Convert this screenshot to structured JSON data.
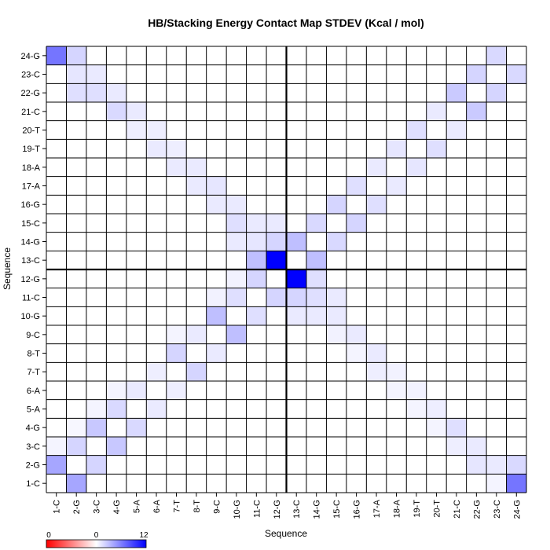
{
  "chart_data": {
    "type": "heatmap",
    "title": "HB/Stacking Energy Contact Map STDEV (Kcal / mol)",
    "xlabel": "Sequence",
    "ylabel": "Sequence",
    "labels": [
      "1-C",
      "2-G",
      "3-C",
      "4-G",
      "5-A",
      "6-A",
      "7-T",
      "8-T",
      "9-C",
      "10-G",
      "11-C",
      "12-G",
      "13-C",
      "14-G",
      "15-C",
      "16-G",
      "17-A",
      "18-A",
      "19-T",
      "20-T",
      "21-C",
      "22-G",
      "23-C",
      "24-G"
    ],
    "colorbar": {
      "min": 0,
      "mid": 0,
      "max": 12,
      "tick_labels": [
        "0",
        "0",
        "12"
      ]
    },
    "divider_after_index": 11,
    "cells": [
      [
        0,
        1,
        4.2
      ],
      [
        0,
        2,
        0.5
      ],
      [
        0,
        23,
        6.5
      ],
      [
        1,
        0,
        4.2
      ],
      [
        1,
        2,
        2.0
      ],
      [
        1,
        3,
        0.4
      ],
      [
        1,
        21,
        1.5
      ],
      [
        1,
        22,
        1.2
      ],
      [
        1,
        23,
        2.0
      ],
      [
        2,
        1,
        2.0
      ],
      [
        2,
        3,
        2.6
      ],
      [
        2,
        4,
        0.5
      ],
      [
        2,
        21,
        1.5
      ],
      [
        2,
        22,
        1.0
      ],
      [
        3,
        2,
        2.6
      ],
      [
        3,
        4,
        1.8
      ],
      [
        3,
        5,
        0.5
      ],
      [
        3,
        20,
        1.8
      ],
      [
        3,
        21,
        1.0
      ],
      [
        4,
        3,
        1.8
      ],
      [
        4,
        5,
        1.0
      ],
      [
        4,
        19,
        0.8
      ],
      [
        4,
        20,
        1.0
      ],
      [
        5,
        4,
        1.0
      ],
      [
        5,
        6,
        0.8
      ],
      [
        5,
        18,
        1.0
      ],
      [
        5,
        19,
        0.8
      ],
      [
        6,
        5,
        0.8
      ],
      [
        6,
        7,
        2.0
      ],
      [
        6,
        8,
        0.5
      ],
      [
        6,
        17,
        1.0
      ],
      [
        6,
        18,
        0.8
      ],
      [
        7,
        6,
        2.0
      ],
      [
        7,
        8,
        1.0
      ],
      [
        7,
        16,
        1.0
      ],
      [
        7,
        17,
        1.0
      ],
      [
        8,
        7,
        1.0
      ],
      [
        8,
        9,
        3.0
      ],
      [
        8,
        10,
        0.6
      ],
      [
        8,
        15,
        1.0
      ],
      [
        8,
        16,
        1.2
      ],
      [
        9,
        8,
        3.0
      ],
      [
        9,
        10,
        1.5
      ],
      [
        9,
        11,
        0.6
      ],
      [
        9,
        13,
        1.0
      ],
      [
        9,
        14,
        1.5
      ],
      [
        9,
        15,
        1.0
      ],
      [
        10,
        9,
        1.5
      ],
      [
        10,
        11,
        2.0
      ],
      [
        10,
        12,
        3.0
      ],
      [
        10,
        13,
        1.2
      ],
      [
        10,
        14,
        1.0
      ],
      [
        11,
        10,
        2.0
      ],
      [
        11,
        12,
        12
      ],
      [
        11,
        13,
        2.0
      ],
      [
        11,
        14,
        1.0
      ],
      [
        12,
        11,
        12
      ],
      [
        12,
        13,
        3.0
      ],
      [
        12,
        10,
        2.0
      ],
      [
        12,
        9,
        1.0
      ],
      [
        13,
        12,
        3.0
      ],
      [
        13,
        14,
        1.8
      ],
      [
        13,
        11,
        1.5
      ],
      [
        13,
        10,
        1.5
      ],
      [
        13,
        9,
        1.0
      ],
      [
        14,
        13,
        1.8
      ],
      [
        14,
        15,
        2.0
      ],
      [
        14,
        10,
        1.0
      ],
      [
        14,
        9,
        1.0
      ],
      [
        14,
        8,
        0.6
      ],
      [
        15,
        14,
        2.0
      ],
      [
        15,
        16,
        1.5
      ],
      [
        15,
        8,
        1.0
      ],
      [
        15,
        7,
        0.5
      ],
      [
        16,
        15,
        1.5
      ],
      [
        16,
        17,
        1.0
      ],
      [
        16,
        7,
        1.0
      ],
      [
        16,
        6,
        0.8
      ],
      [
        17,
        16,
        1.0
      ],
      [
        17,
        18,
        1.2
      ],
      [
        17,
        6,
        0.6
      ],
      [
        17,
        5,
        0.5
      ],
      [
        18,
        17,
        1.2
      ],
      [
        18,
        19,
        1.5
      ],
      [
        18,
        5,
        0.6
      ],
      [
        18,
        4,
        0.5
      ],
      [
        19,
        18,
        1.5
      ],
      [
        19,
        20,
        1.0
      ],
      [
        19,
        4,
        0.8
      ],
      [
        19,
        3,
        0.5
      ],
      [
        20,
        19,
        1.0
      ],
      [
        20,
        21,
        2.5
      ],
      [
        20,
        3,
        1.5
      ],
      [
        20,
        2,
        0.8
      ],
      [
        21,
        20,
        2.5
      ],
      [
        21,
        22,
        2.0
      ],
      [
        21,
        1,
        1.2
      ],
      [
        21,
        2,
        1.0
      ],
      [
        22,
        21,
        2.0
      ],
      [
        22,
        23,
        1.8
      ],
      [
        22,
        1,
        1.0
      ],
      [
        22,
        0,
        0.5
      ],
      [
        23,
        22,
        1.8
      ],
      [
        23,
        0,
        6.5
      ],
      [
        23,
        1,
        1.8
      ]
    ]
  }
}
